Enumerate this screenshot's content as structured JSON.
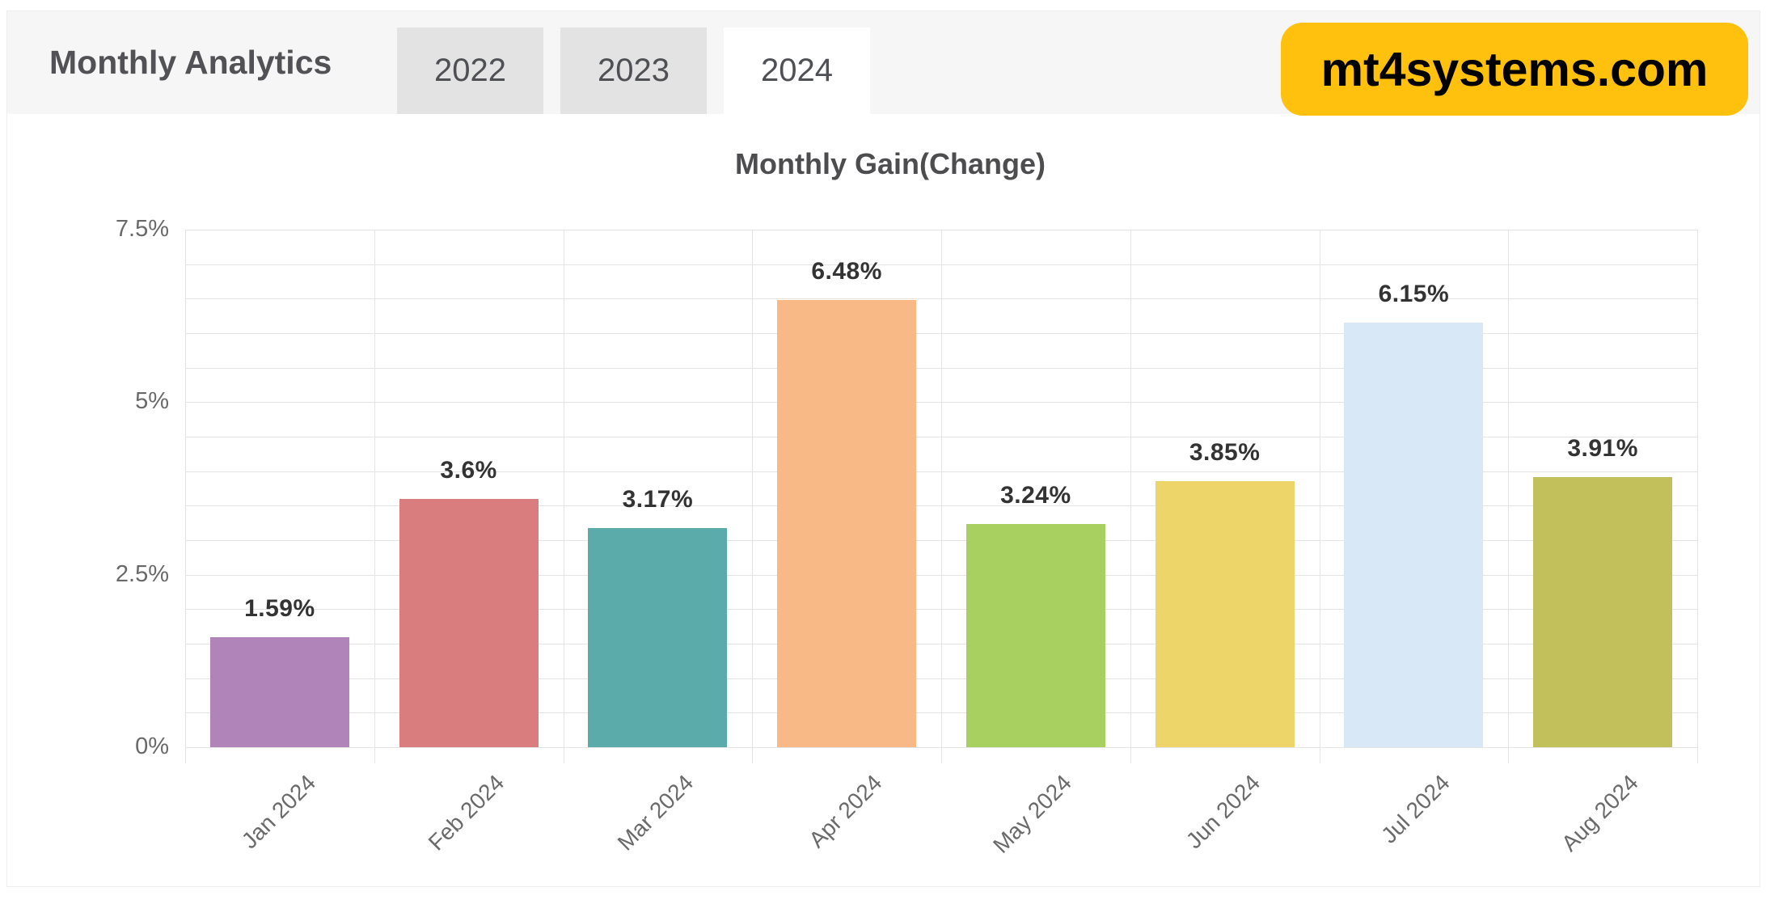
{
  "header": {
    "title": "Monthly Analytics",
    "tabs": [
      {
        "label": "2022",
        "active": false
      },
      {
        "label": "2023",
        "active": false
      },
      {
        "label": "2024",
        "active": true
      }
    ]
  },
  "watermark": {
    "text": "mt4systems.com"
  },
  "chart_data": {
    "type": "bar",
    "title": "Monthly Gain(Change)",
    "categories": [
      "Jan 2024",
      "Feb 2024",
      "Mar 2024",
      "Apr 2024",
      "May 2024",
      "Jun 2024",
      "Jul 2024",
      "Aug 2024"
    ],
    "values": [
      1.59,
      3.6,
      3.17,
      6.48,
      3.24,
      3.85,
      6.15,
      3.91
    ],
    "value_labels": [
      "1.59%",
      "3.6%",
      "3.17%",
      "6.48%",
      "3.24%",
      "3.85%",
      "6.15%",
      "3.91%"
    ],
    "bar_colors": [
      "#b184b9",
      "#d97d7f",
      "#5aaba9",
      "#f8b987",
      "#a8d060",
      "#eed56a",
      "#d9e8f7",
      "#c1c05b"
    ],
    "xlabel": "",
    "ylabel": "",
    "ylim": [
      0,
      7.5
    ],
    "yticks": [
      {
        "value": 0,
        "label": "0%"
      },
      {
        "value": 2.5,
        "label": "2.5%"
      },
      {
        "value": 5,
        "label": "5%"
      },
      {
        "value": 7.5,
        "label": "7.5%"
      }
    ],
    "minor_grid_step": 0.5,
    "grid": true,
    "legend": "none"
  },
  "colors": {
    "header_bg": "#f6f6f6",
    "tab_inactive_bg": "#e3e3e3",
    "tab_active_bg": "#ffffff",
    "badge_bg": "#ffc10d",
    "badge_text": "#000000",
    "grid": "#e4e4e4",
    "axis_text": "#6a6a6a",
    "value_text": "#333333",
    "title_text": "#4d4d4f"
  }
}
